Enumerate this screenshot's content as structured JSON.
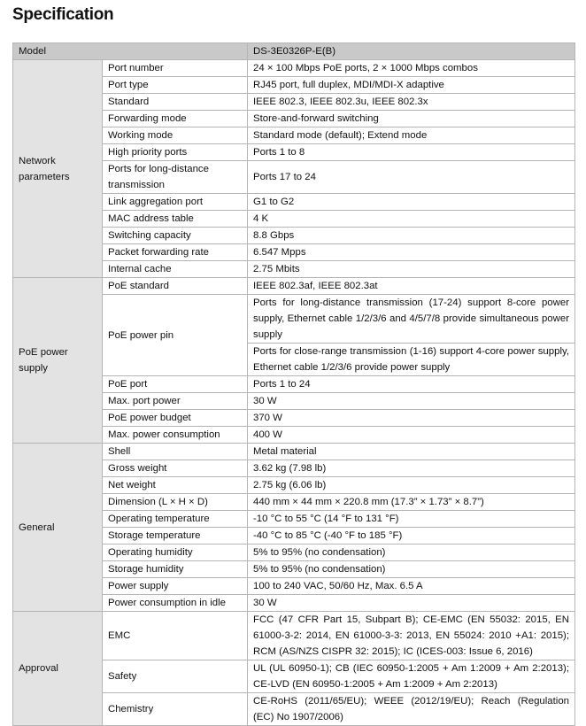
{
  "title": "Specification",
  "header": {
    "label": "Model",
    "value": "DS-3E0326P-E(B)"
  },
  "groups": [
    {
      "name": "Network parameters",
      "rows": [
        {
          "label": "Port number",
          "values": [
            "24 × 100 Mbps PoE ports, 2 × 1000 Mbps combos"
          ]
        },
        {
          "label": "Port type",
          "values": [
            "RJ45 port, full duplex, MDI/MDI-X adaptive"
          ]
        },
        {
          "label": "Standard",
          "values": [
            "IEEE 802.3, IEEE 802.3u, IEEE 802.3x"
          ]
        },
        {
          "label": "Forwarding mode",
          "values": [
            "Store-and-forward switching"
          ]
        },
        {
          "label": "Working mode",
          "values": [
            "Standard mode (default); Extend mode"
          ]
        },
        {
          "label": "High priority ports",
          "values": [
            "Ports 1 to 8"
          ]
        },
        {
          "label": "Ports for long-distance transmission",
          "values": [
            "Ports 17 to 24"
          ]
        },
        {
          "label": "Link aggregation port",
          "values": [
            "G1 to G2"
          ]
        },
        {
          "label": "MAC address table",
          "values": [
            "4 K"
          ]
        },
        {
          "label": "Switching capacity",
          "values": [
            "8.8 Gbps"
          ]
        },
        {
          "label": "Packet forwarding rate",
          "values": [
            "6.547 Mpps"
          ]
        },
        {
          "label": "Internal cache",
          "values": [
            "2.75 Mbits"
          ]
        }
      ]
    },
    {
      "name": "PoE power supply",
      "rows": [
        {
          "label": "PoE standard",
          "values": [
            "IEEE 802.3af, IEEE 802.3at"
          ]
        },
        {
          "label": "PoE power pin",
          "values": [
            "Ports for long-distance transmission (17-24) support 8-core power supply, Ethernet cable 1/2/3/6 and 4/5/7/8 provide simultaneous power supply",
            "Ports for close-range transmission (1-16) support 4-core power supply, Ethernet cable 1/2/3/6 provide power supply"
          ]
        },
        {
          "label": "PoE port",
          "values": [
            "Ports 1 to 24"
          ]
        },
        {
          "label": "Max. port power",
          "values": [
            "30 W"
          ]
        },
        {
          "label": "PoE power budget",
          "values": [
            "370 W"
          ]
        },
        {
          "label": "Max. power consumption",
          "values": [
            "400 W"
          ]
        }
      ]
    },
    {
      "name": "General",
      "rows": [
        {
          "label": "Shell",
          "values": [
            "Metal material"
          ]
        },
        {
          "label": "Gross weight",
          "values": [
            "3.62 kg (7.98 lb)"
          ]
        },
        {
          "label": "Net weight",
          "values": [
            "2.75 kg (6.06 lb)"
          ]
        },
        {
          "label": "Dimension (L × H × D)",
          "values": [
            "440 mm × 44 mm × 220.8 mm (17.3” × 1.73” × 8.7”)"
          ]
        },
        {
          "label": "Operating temperature",
          "values": [
            "-10 °C to 55 °C (14 °F to 131 °F)"
          ]
        },
        {
          "label": "Storage temperature",
          "values": [
            "-40 °C to 85 °C (-40 °F to 185 °F)"
          ]
        },
        {
          "label": "Operating humidity",
          "values": [
            "5% to 95% (no condensation)"
          ]
        },
        {
          "label": "Storage humidity",
          "values": [
            "5% to 95% (no condensation)"
          ]
        },
        {
          "label": "Power supply",
          "values": [
            "100 to 240 VAC, 50/60 Hz, Max. 6.5 A"
          ]
        },
        {
          "label": "Power consumption in idle",
          "values": [
            "30 W"
          ]
        }
      ]
    },
    {
      "name": "Approval",
      "rows": [
        {
          "label": "EMC",
          "values": [
            "FCC (47 CFR Part 15, Subpart B); CE-EMC (EN 55032: 2015, EN 61000-3-2: 2014, EN 61000-3-3: 2013, EN 55024: 2010 +A1: 2015); RCM (AS/NZS CISPR 32: 2015); IC (ICES-003: Issue 6, 2016)"
          ]
        },
        {
          "label": "Safety",
          "values": [
            "UL (UL 60950-1); CB (IEC 60950-1:2005 + Am 1:2009 + Am 2:2013); CE-LVD (EN 60950-1:2005 + Am 1:2009 + Am 2:2013)"
          ]
        },
        {
          "label": "Chemistry",
          "values": [
            "CE-RoHS (2011/65/EU); WEEE (2012/19/EU); Reach (Regulation (EC) No 1907/2006)"
          ]
        }
      ]
    }
  ]
}
